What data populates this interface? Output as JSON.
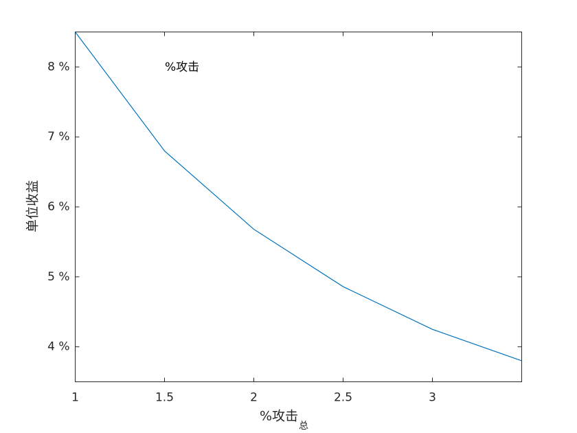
{
  "chart_data": {
    "type": "line",
    "ylabel": "单位收益",
    "xlabel": "%攻击",
    "xlabel_subscript": "总",
    "annotation": "%攻击",
    "x": [
      1,
      1.5,
      2,
      2.5,
      3,
      3.5
    ],
    "series": [
      {
        "color": "#0072bd",
        "values": [
          8.5,
          6.8,
          5.68,
          4.86,
          4.25,
          3.8
        ]
      }
    ],
    "xlim": [
      1,
      3.5
    ],
    "ylim": [
      3.5,
      8.5
    ],
    "xticks": [
      1,
      1.5,
      2,
      2.5,
      3
    ],
    "yticks": [
      {
        "value": 4,
        "label": "4 %"
      },
      {
        "value": 5,
        "label": "5 %"
      },
      {
        "value": 6,
        "label": "6 %"
      },
      {
        "value": 7,
        "label": "7 %"
      },
      {
        "value": 8,
        "label": "8 %"
      }
    ],
    "grid": false
  }
}
